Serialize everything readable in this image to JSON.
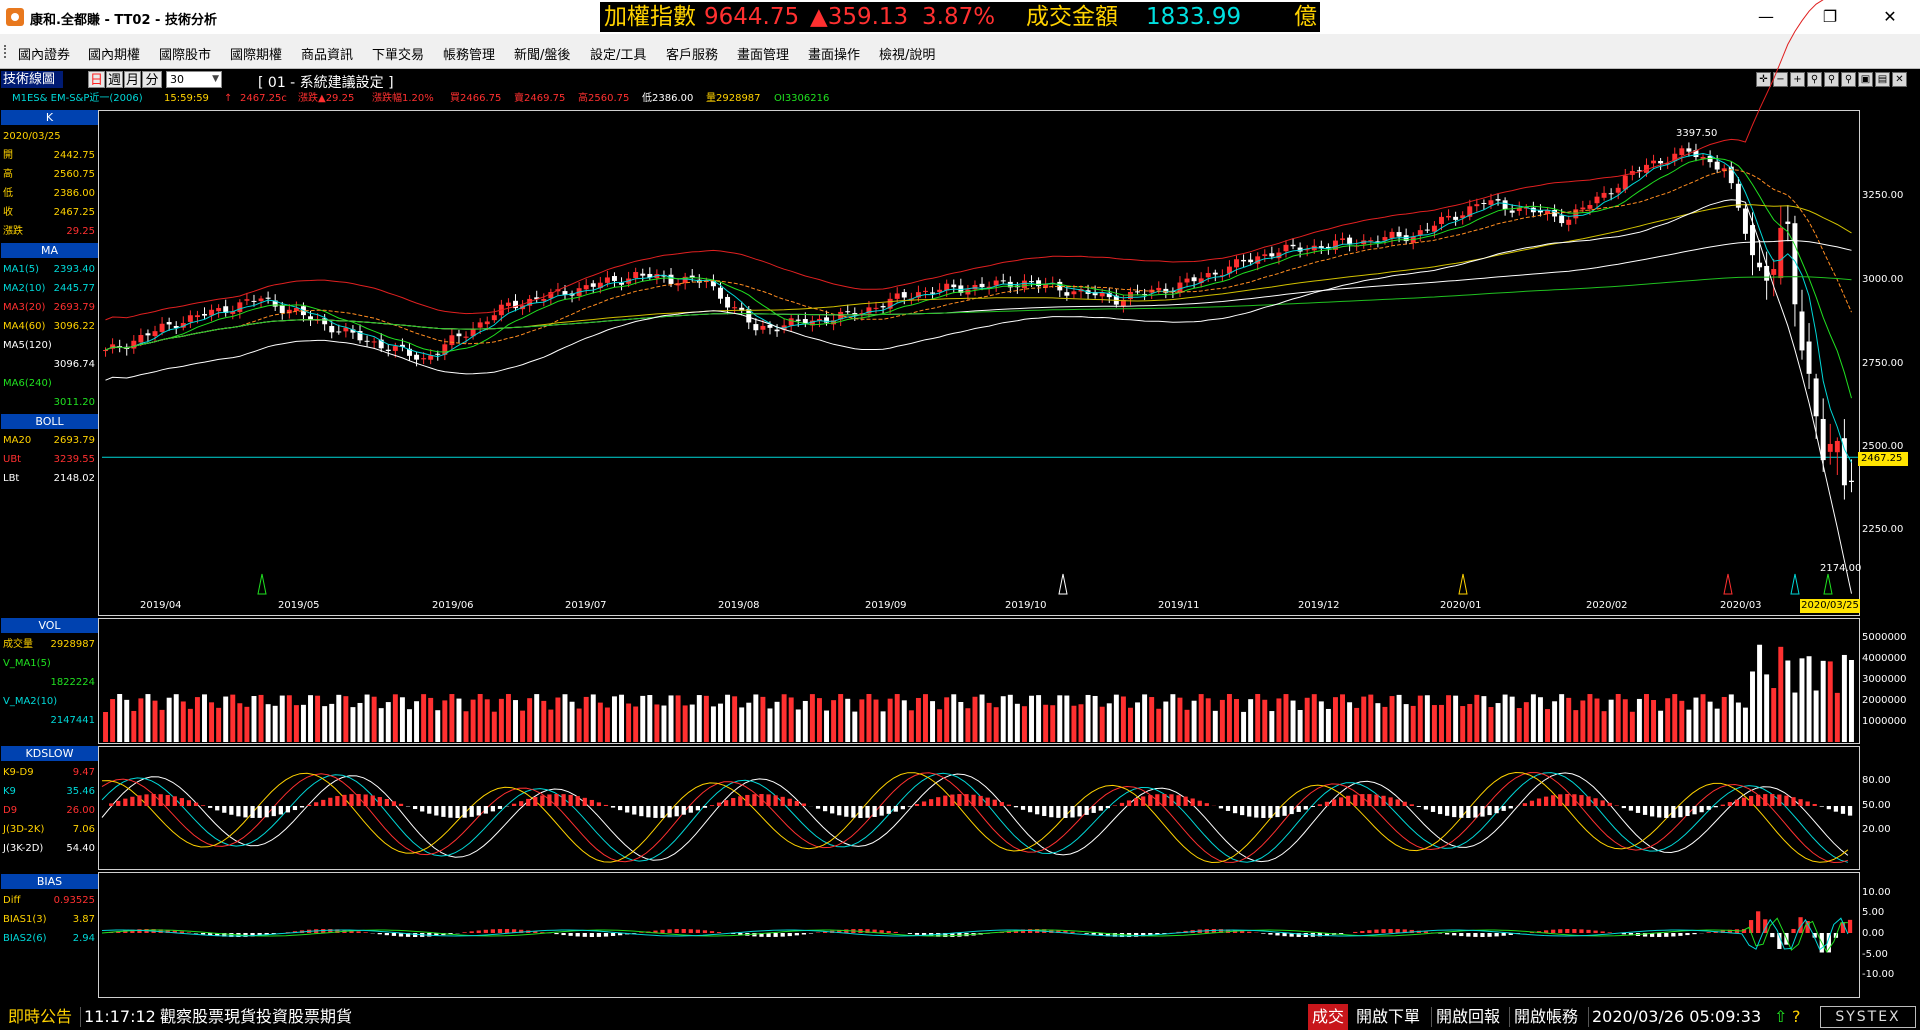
{
  "window": {
    "title": "康和.全都賺 - TT02 - 技術分析",
    "controls": [
      "minimize",
      "maximize",
      "close"
    ]
  },
  "ticker": {
    "index_label": "加權指數",
    "index_value": "9644.75",
    "change": "▲359.13",
    "change_pct": "3.87%",
    "volume_label": "成交金額",
    "volume_value": "1833.99",
    "unit": "億"
  },
  "menu": [
    "國內證券",
    "國內期權",
    "國際股市",
    "國際期權",
    "商品資訊",
    "下單交易",
    "帳務管理",
    "新聞/盤後",
    "設定/工具",
    "客戶服務",
    "畫面管理",
    "畫面操作",
    "檢視/說明"
  ],
  "toolbar": {
    "title": "技術線圖",
    "periods": [
      "日",
      "週",
      "月",
      "分"
    ],
    "minute_value": "30",
    "setting_title": "[ 01 - 系統建議設定 ]"
  },
  "info": {
    "symbol": "M1ES& EM-S&P近一(2006)",
    "time": "15:59:59",
    "last_price": "2467.25c",
    "arrow": "↑",
    "change": "漲跌▲29.25",
    "change_pct": "漲跌幅1.20%",
    "bid": "買2466.75",
    "ask": "賣2469.75",
    "high": "高2560.75",
    "low": "低2386.00",
    "volume": "量2928987",
    "oi": "OI3306216"
  },
  "sidebar": {
    "k_header": "K",
    "date": "2020/03/25",
    "open": {
      "label": "開",
      "value": "2442.75"
    },
    "high": {
      "label": "高",
      "value": "2560.75"
    },
    "low": {
      "label": "低",
      "value": "2386.00"
    },
    "close": {
      "label": "收",
      "value": "2467.25"
    },
    "change": {
      "label": "漲跌",
      "value": "29.25"
    },
    "ma_header": "MA",
    "ma1": {
      "label": "MA1(5)",
      "value": "2393.40"
    },
    "ma2": {
      "label": "MA2(10)",
      "value": "2445.77"
    },
    "ma3": {
      "label": "MA3(20)",
      "value": "2693.79"
    },
    "ma4": {
      "label": "MA4(60)",
      "value": "3096.22"
    },
    "ma5": {
      "label": "MA5(120)",
      "value": "3096.74"
    },
    "ma6": {
      "label": "MA6(240)",
      "value": "3011.20"
    },
    "boll_header": "BOLL",
    "ma20": {
      "label": "MA20",
      "value": "2693.79"
    },
    "ubt": {
      "label": "UBt",
      "value": "3239.55"
    },
    "lbt": {
      "label": "LBt",
      "value": "2148.02"
    },
    "vol_header": "VOL",
    "vol": {
      "label": "成交量",
      "value": "2928987"
    },
    "vma1": {
      "label": "V_MA1(5)",
      "value": "1822224"
    },
    "vma2": {
      "label": "V_MA2(10)",
      "value": "2147441"
    },
    "kd_header": "KDSLOW",
    "k9d9": {
      "label": "K9-D9",
      "value": "9.47"
    },
    "k9": {
      "label": "K9",
      "value": "35.46"
    },
    "d9": {
      "label": "D9",
      "value": "26.00"
    },
    "j1": {
      "label": "J(3D-2K)",
      "value": "7.06"
    },
    "j2": {
      "label": "J(3K-2D)",
      "value": "54.40"
    },
    "bias_header": "BIAS",
    "diff": {
      "label": "Diff",
      "value": "0.93525"
    },
    "bias1": {
      "label": "BIAS1(3)",
      "value": "3.87"
    },
    "bias2": {
      "label": "BIAS2(6)",
      "value": "2.94"
    }
  },
  "axes": {
    "price_ticks": [
      "3250.00",
      "3000.00",
      "2750.00",
      "2500.00",
      "2250.00"
    ],
    "high_label": "3397.50",
    "low_label": "2174.00",
    "current_price": "2467.25",
    "dates": [
      "2019/04",
      "2019/05",
      "2019/06",
      "2019/07",
      "2019/08",
      "2019/09",
      "2019/10",
      "2019/11",
      "2019/12",
      "2020/01",
      "2020/02",
      "2020/03"
    ],
    "current_date": "2020/03/25",
    "vol_ticks": [
      "5000000",
      "4000000",
      "3000000",
      "2000000",
      "1000000"
    ],
    "kd_ticks": [
      "80.00",
      "50.00",
      "20.00"
    ],
    "bias_ticks": [
      "10.00",
      "5.00",
      "0.00",
      "-5.00",
      "-10.00"
    ]
  },
  "status": {
    "announce": "即時公告",
    "time": "11:17:12",
    "message": "觀察股票現貨投資股票期貨",
    "trade": "成交",
    "open_order": "開啟下單",
    "open_report": "開啟回報",
    "open_account": "開啟帳務",
    "datetime": "2020/03/26 05:09:33",
    "brand": "SYSTEX"
  },
  "colors": {
    "up": "#ff3030",
    "down": "#ffffff",
    "accent_blue": "#0042b0",
    "price_line": "#00d8d8",
    "flag": "#ffe400"
  }
}
